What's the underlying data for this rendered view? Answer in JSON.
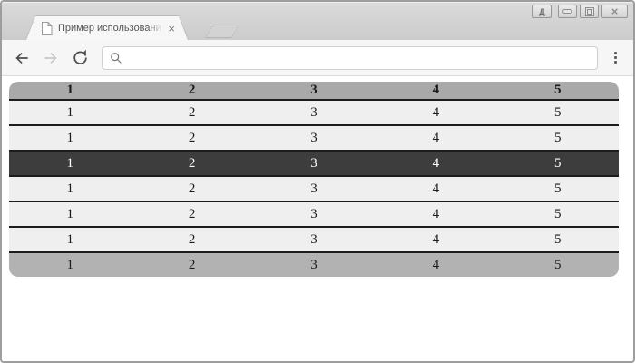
{
  "window": {
    "controls": {
      "language_button_label": "Д",
      "close_label": "×"
    }
  },
  "tabbar": {
    "tab_title": "Пример использования пос",
    "close_tab_icon": "×"
  },
  "toolbar": {
    "address_value": "",
    "address_placeholder": ""
  },
  "page": {
    "table": {
      "headers": [
        "1",
        "2",
        "3",
        "4",
        "5"
      ],
      "rows": [
        [
          "1",
          "2",
          "3",
          "4",
          "5"
        ],
        [
          "1",
          "2",
          "3",
          "4",
          "5"
        ],
        [
          "1",
          "2",
          "3",
          "4",
          "5"
        ],
        [
          "1",
          "2",
          "3",
          "4",
          "5"
        ],
        [
          "1",
          "2",
          "3",
          "4",
          "5"
        ],
        [
          "1",
          "2",
          "3",
          "4",
          "5"
        ]
      ],
      "footer": [
        "1",
        "2",
        "3",
        "4",
        "5"
      ],
      "selected_row_index": 2
    },
    "colors": {
      "header_bg": "#a9a9a9",
      "row_bg": "#efefef",
      "row_border": "#1c1c1c",
      "selected_row_bg": "#3d3d3d",
      "selected_row_text": "#ffffff",
      "footer_bg": "#b2b2b2"
    }
  }
}
